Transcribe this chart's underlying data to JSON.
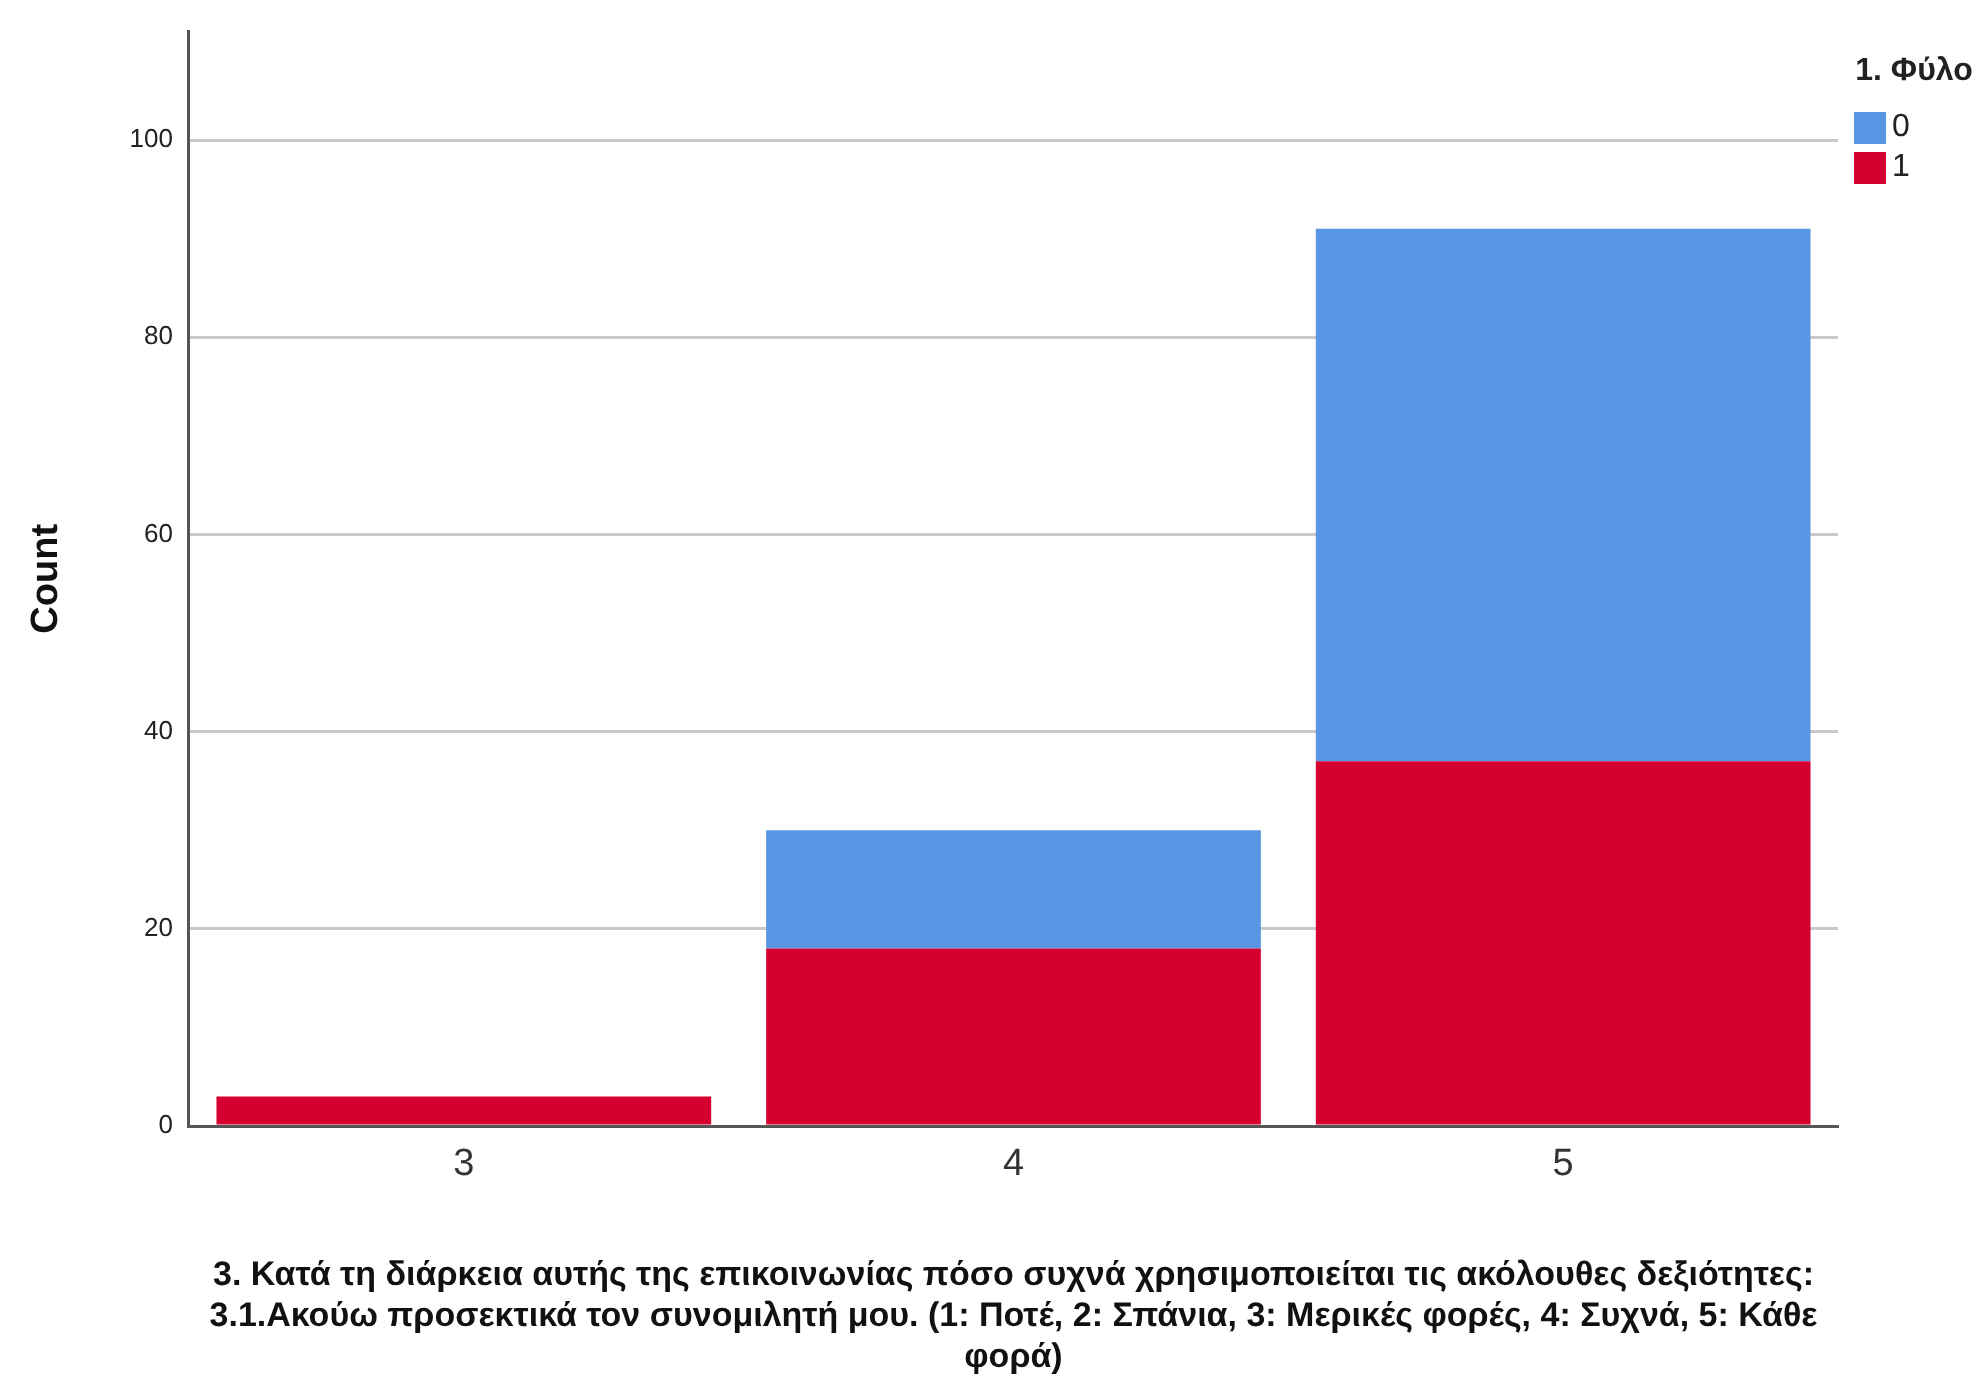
{
  "chart_data": {
    "type": "bar",
    "stacked": true,
    "xlabel": "3. Κατά τη διάρκεια αυτής της επικοινωνίας πόσο συχνά χρησιμοποιείται τις ακόλουθες δεξιότητες: 3.1.Ακούω προσεκτικά τον συνομιλητή μου. (1: Ποτέ, 2: Σπάνια, 3: Μερικές φορές, 4: Συχνά, 5: Κάθε φορά)",
    "ylabel": "Count",
    "legend_title": "1. Φύλο",
    "categories": [
      "3",
      "4",
      "5"
    ],
    "series": [
      {
        "name": "1",
        "color": "#d60030",
        "values": [
          3,
          18,
          37
        ]
      },
      {
        "name": "0",
        "color": "#5896e3",
        "values": [
          0,
          12,
          54
        ]
      }
    ],
    "ylim": [
      0,
      111
    ],
    "yticks": [
      0,
      20,
      40,
      60,
      80,
      100
    ],
    "grid": "y",
    "legend": "top right"
  }
}
